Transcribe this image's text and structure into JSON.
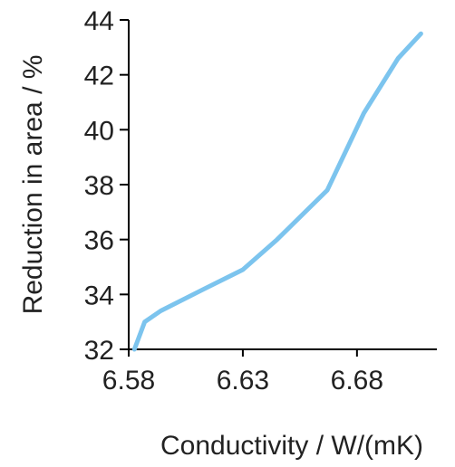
{
  "chart_data": {
    "type": "line",
    "title": "",
    "xlabel": "Conductivity / W/(mK)",
    "ylabel": "Reduction in area / %",
    "xlim": [
      6.58,
      6.715
    ],
    "ylim": [
      32,
      44
    ],
    "x_ticks": [
      "6.58",
      "6.63",
      "6.68"
    ],
    "y_ticks": [
      "32",
      "34",
      "36",
      "38",
      "40",
      "42",
      "44"
    ],
    "grid": false,
    "legend": "none",
    "series": [
      {
        "color": "#7cc4ee",
        "x": [
          6.5825,
          6.587,
          6.594,
          6.613,
          6.63,
          6.645,
          6.667,
          6.683,
          6.698,
          6.708
        ],
        "y": [
          32.0,
          33.0,
          33.4,
          34.2,
          34.9,
          36.0,
          37.8,
          40.6,
          42.6,
          43.5
        ]
      }
    ]
  }
}
